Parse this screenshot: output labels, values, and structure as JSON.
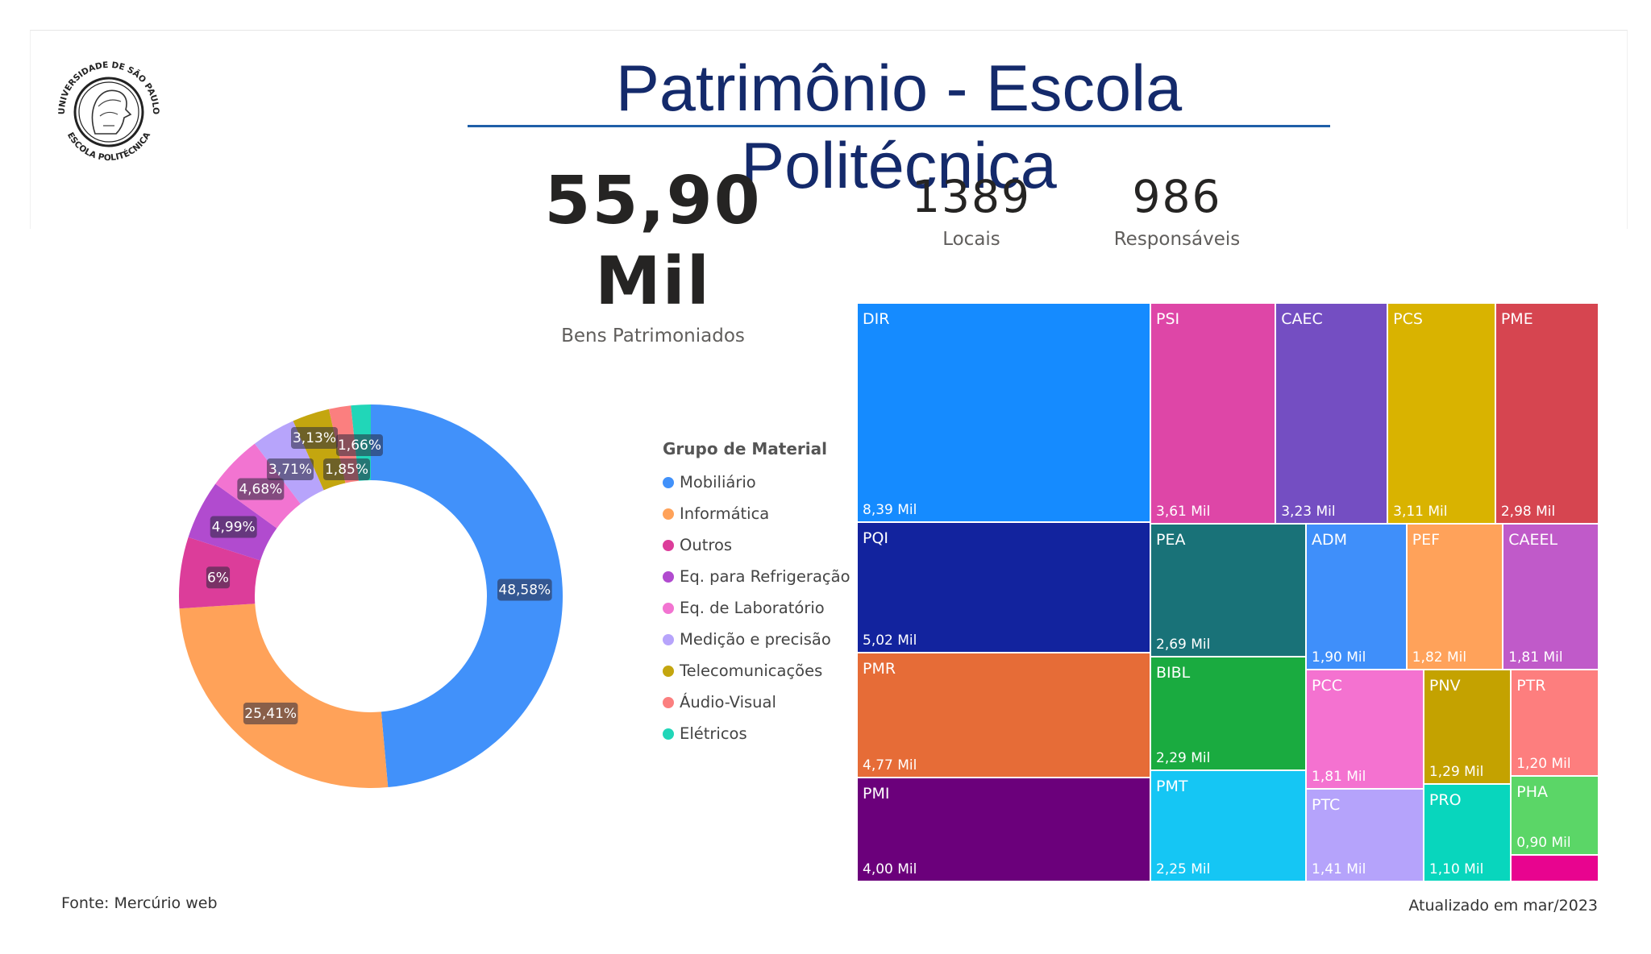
{
  "header": {
    "title": "Patrimônio - Escola Politécnica",
    "logo": {
      "text_top": "UNIVERSIDADE DE SÃO PAULO",
      "text_bottom": "ESCOLA POLITÉCNICA"
    }
  },
  "kpis": {
    "bens": {
      "value": "55,90 Mil",
      "label": "Bens Patrimoniados"
    },
    "locais": {
      "value": "1389",
      "label": "Locais"
    },
    "responsaveis": {
      "value": "986",
      "label": "Responsáveis"
    }
  },
  "footer": {
    "source": "Fonte: Mercúrio web",
    "updated": "Atualizado em mar/2023"
  },
  "chart_data": [
    {
      "type": "pie",
      "variant": "donut",
      "legend_title": "Grupo de Material",
      "legend_position": "right",
      "slices": [
        {
          "name": "Mobiliário",
          "value": 48.58,
          "label": "48,58%",
          "color": "#4191fa"
        },
        {
          "name": "Informática",
          "value": 25.41,
          "label": "25,41%",
          "color": "#ffa259"
        },
        {
          "name": "Outros",
          "value": 6.0,
          "label": "6%",
          "color": "#dc3d9a"
        },
        {
          "name": "Eq. para Refrigeração",
          "value": 4.99,
          "label": "4,99%",
          "color": "#b14bcf"
        },
        {
          "name": "Eq. de Laboratório",
          "value": 4.68,
          "label": "4,68%",
          "color": "#f274d1"
        },
        {
          "name": "Medição e precisão",
          "value": 3.71,
          "label": "3,71%",
          "color": "#b7a4fb"
        },
        {
          "name": "Telecomunicações",
          "value": 3.13,
          "label": "3,13%",
          "color": "#c4a60f"
        },
        {
          "name": "Áudio-Visual",
          "value": 1.85,
          "label": "1,85%",
          "color": "#fb7f7f"
        },
        {
          "name": "Elétricos",
          "value": 1.66,
          "label": "1,66%",
          "color": "#21d6b8"
        }
      ]
    },
    {
      "type": "treemap",
      "unit": "Mil",
      "items": [
        {
          "name": "DIR",
          "value": 8.39,
          "label": "8,39 Mil",
          "color": "#158bff"
        },
        {
          "name": "PSI",
          "value": 3.61,
          "label": "3,61 Mil",
          "color": "#de46a7"
        },
        {
          "name": "CAEC",
          "value": 3.23,
          "label": "3,23 Mil",
          "color": "#744ec2"
        },
        {
          "name": "PCS",
          "value": 3.11,
          "label": "3,11 Mil",
          "color": "#d9b300"
        },
        {
          "name": "PME",
          "value": 2.98,
          "label": "2,98 Mil",
          "color": "#d64550"
        },
        {
          "name": "PQI",
          "value": 5.02,
          "label": "5,02 Mil",
          "color": "#12239e"
        },
        {
          "name": "PEA",
          "value": 2.69,
          "label": "2,69 Mil",
          "color": "#197278"
        },
        {
          "name": "ADM",
          "value": 1.9,
          "label": "1,90 Mil",
          "color": "#3f8ffa"
        },
        {
          "name": "PEF",
          "value": 1.82,
          "label": "1,82 Mil",
          "color": "#ffa25a"
        },
        {
          "name": "CAEEL",
          "value": 1.81,
          "label": "1,81 Mil",
          "color": "#c05ac9"
        },
        {
          "name": "PMR",
          "value": 4.77,
          "label": "4,77 Mil",
          "color": "#e66c37"
        },
        {
          "name": "BIBL",
          "value": 2.29,
          "label": "2,29 Mil",
          "color": "#1aab40"
        },
        {
          "name": "PCC",
          "value": 1.81,
          "label": "1,81 Mil",
          "color": "#f472d0"
        },
        {
          "name": "PNV",
          "value": 1.29,
          "label": "1,29 Mil",
          "color": "#c4a200"
        },
        {
          "name": "PTR",
          "value": 1.2,
          "label": "1,20 Mil",
          "color": "#fd7e7e"
        },
        {
          "name": "PMI",
          "value": 4.0,
          "label": "4,00 Mil",
          "color": "#6b007b"
        },
        {
          "name": "PMT",
          "value": 2.25,
          "label": "2,25 Mil",
          "color": "#15c6f4"
        },
        {
          "name": "PTC",
          "value": 1.41,
          "label": "1,41 Mil",
          "color": "#b5a3fb"
        },
        {
          "name": "PRO",
          "value": 1.1,
          "label": "1,10 Mil",
          "color": "#08d6bd"
        },
        {
          "name": "PHA",
          "value": 0.9,
          "label": "0,90 Mil",
          "color": "#5bd667"
        },
        {
          "name": "",
          "value": 0.3,
          "label": "",
          "color": "#e8048f"
        }
      ]
    }
  ]
}
